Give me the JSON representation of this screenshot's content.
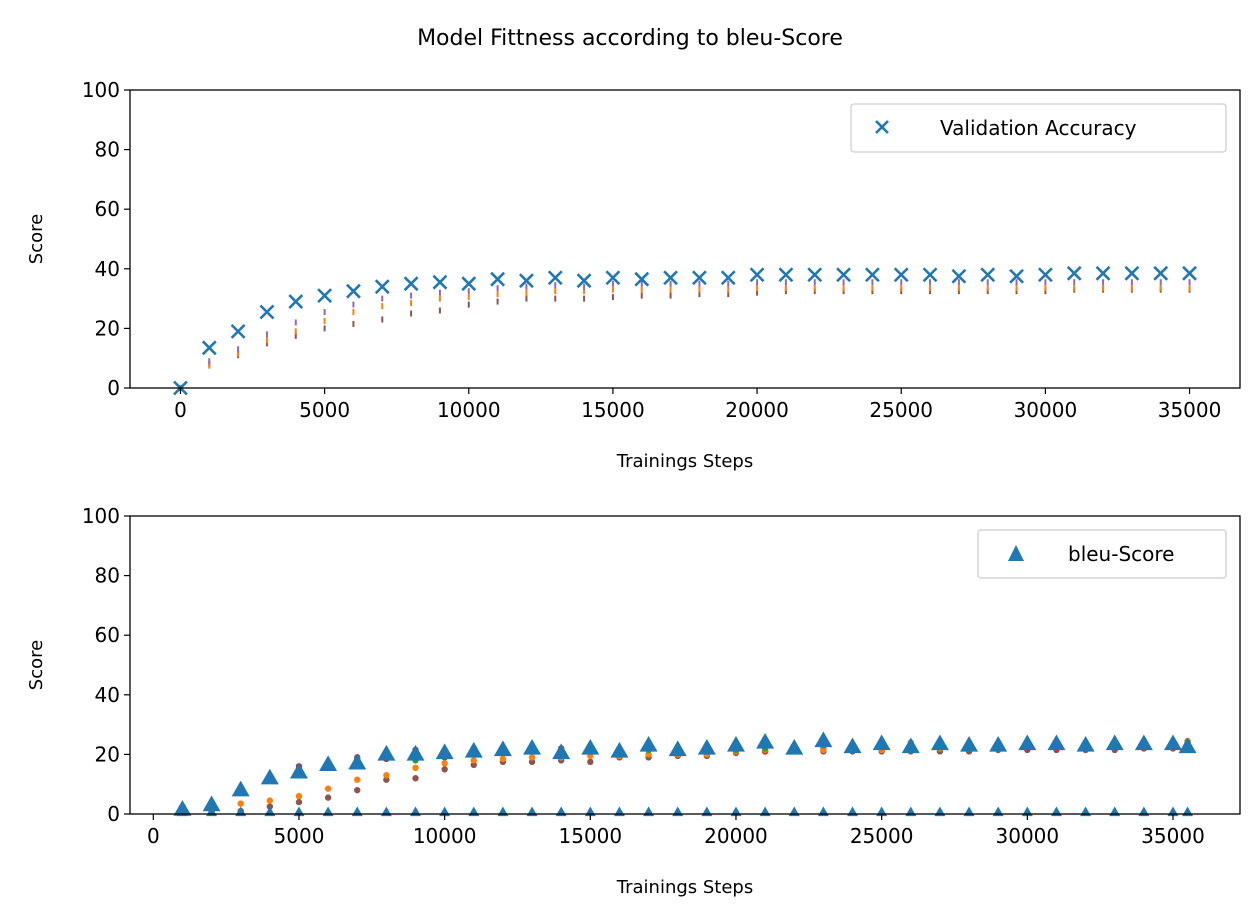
{
  "figure": {
    "title": "Model Fittness according to bleu-Score"
  },
  "colors": {
    "blue": "#1f77b4",
    "orange": "#ff7f0e",
    "green": "#2ca02c",
    "red": "#d62728",
    "purple": "#9467bd",
    "brown": "#8c564b",
    "axis": "#000000",
    "legend_border": "#cccccc"
  },
  "chart_data": [
    {
      "type": "scatter",
      "xlabel": "Trainings Steps",
      "ylabel": "Score",
      "xlim": [
        -1750,
        36750
      ],
      "ylim": [
        0,
        100
      ],
      "xticks": [
        0,
        5000,
        10000,
        15000,
        20000,
        25000,
        30000,
        35000
      ],
      "yticks": [
        0,
        20,
        40,
        60,
        80,
        100
      ],
      "legend": {
        "position": "top-right",
        "entries": [
          "Validation Accuracy"
        ]
      },
      "x": [
        0,
        1000,
        2000,
        3000,
        4000,
        5000,
        6000,
        7000,
        8000,
        9000,
        10000,
        11000,
        12000,
        13000,
        14000,
        15000,
        16000,
        17000,
        18000,
        19000,
        20000,
        21000,
        22000,
        23000,
        24000,
        25000,
        26000,
        27000,
        28000,
        29000,
        30000,
        31000,
        32000,
        33000,
        34000,
        35000
      ],
      "series": [
        {
          "name": "Validation Accuracy",
          "marker": "x",
          "color": "#1f77b4",
          "values": [
            0,
            13.5,
            19,
            25.5,
            29,
            31,
            32.5,
            34,
            35,
            35.5,
            35,
            36.5,
            36,
            37,
            36,
            37,
            36.5,
            37,
            37,
            37,
            38,
            38,
            38,
            38,
            38,
            38,
            38,
            37.5,
            38,
            37.5,
            38,
            38.5,
            38.5,
            38.5,
            38.5,
            38.5
          ]
        },
        {
          "marker": "tick",
          "color": "#9467bd",
          "values": [
            0,
            9,
            13,
            18,
            22,
            25.5,
            28,
            30,
            31,
            32,
            32.5,
            33.5,
            34,
            34.5,
            34,
            35,
            35,
            35,
            35,
            35,
            35.5,
            35.5,
            35.5,
            35.5,
            35.5,
            35.5,
            35.5,
            35.5,
            35.5,
            35.5,
            35.5,
            35.5,
            35.5,
            35.5,
            35.5,
            35.5
          ]
        },
        {
          "marker": "tick",
          "color": "#ff7f0e",
          "values": [
            0,
            7.5,
            11.5,
            16,
            19,
            22.5,
            25.5,
            27.5,
            28.5,
            30,
            30.5,
            31.5,
            32,
            32.5,
            32.5,
            33,
            33,
            33,
            33,
            33,
            33.5,
            33.5,
            33.5,
            33.5,
            33.5,
            33.5,
            33.5,
            33.5,
            33.5,
            33.5,
            33.5,
            33.5,
            33.5,
            33.5,
            33.5,
            33.5
          ]
        },
        {
          "marker": "tick",
          "color": "#8c564b",
          "values": [
            0,
            8,
            11,
            15,
            17.5,
            20,
            21.5,
            23,
            25,
            26,
            28,
            29,
            30,
            30,
            30,
            30.5,
            31,
            31,
            31.5,
            31.5,
            32,
            32.5,
            32.5,
            32.5,
            32.5,
            32.5,
            32.5,
            32.5,
            32.5,
            32.5,
            32.5,
            33,
            33,
            33,
            33,
            33
          ]
        }
      ]
    },
    {
      "type": "scatter",
      "xlabel": "Trainings Steps",
      "ylabel": "Score",
      "xlim": [
        -800,
        37300
      ],
      "ylim": [
        0,
        100
      ],
      "xticks": [
        0,
        5000,
        10000,
        15000,
        20000,
        25000,
        30000,
        35000
      ],
      "yticks": [
        0,
        20,
        40,
        60,
        80,
        100
      ],
      "legend": {
        "position": "top-right",
        "entries": [
          "bleu-Score"
        ]
      },
      "x": [
        1000,
        2000,
        3000,
        4000,
        5000,
        6000,
        7000,
        8000,
        9000,
        10000,
        11000,
        12000,
        13000,
        14000,
        15000,
        16000,
        17000,
        18000,
        19000,
        20000,
        21000,
        22000,
        23000,
        24000,
        25000,
        26000,
        27000,
        28000,
        29000,
        30000,
        31000,
        32000,
        33000,
        34000,
        35000,
        35500
      ],
      "series": [
        {
          "name": "bleu-Score",
          "marker": "triangle",
          "color": "#1f77b4",
          "values": [
            1.5,
            3,
            8,
            12,
            14,
            16.5,
            17,
            20,
            20,
            20.5,
            21,
            21.5,
            22,
            20.5,
            22,
            21,
            23,
            21.5,
            22,
            23,
            24,
            22,
            24.5,
            22.5,
            23.5,
            22.5,
            23.5,
            23,
            23,
            23.5,
            23.5,
            23,
            23.5,
            23.5,
            23.5,
            22.5
          ]
        },
        {
          "marker": "triangle-small",
          "color": "#1f77b4",
          "values": [
            0.5,
            0.5,
            0.5,
            0.5,
            0.5,
            0.5,
            0.5,
            0.5,
            0.5,
            0.5,
            0.5,
            0.5,
            0.5,
            0.5,
            0.5,
            0.5,
            0.5,
            0.5,
            0.5,
            0.5,
            0.5,
            0.5,
            0.5,
            0.5,
            0.5,
            0.5,
            0.5,
            0.5,
            0.5,
            0.5,
            0.5,
            0.5,
            0.5,
            0.5,
            0.5,
            0.5
          ]
        },
        {
          "marker": "dot",
          "color": "#2ca02c",
          "values": [
            2,
            4,
            8.5,
            12,
            15,
            17,
            18.5,
            19.5,
            18,
            21.5,
            22,
            21.5,
            21.5,
            21,
            21,
            20.5,
            21.5,
            21,
            21,
            21.5,
            22,
            23,
            23,
            23,
            22.5,
            23,
            24,
            23,
            23.5,
            23,
            24,
            23.5,
            23,
            24,
            24,
            24
          ]
        },
        {
          "marker": "dot",
          "color": "#ff7f0e",
          "values": [
            1,
            1,
            3.5,
            4.5,
            6,
            8.5,
            11.5,
            13,
            15.5,
            17,
            18,
            18.5,
            19,
            19,
            19.5,
            19.5,
            20,
            20,
            20,
            21,
            21.5,
            22,
            21.5,
            21.5,
            21.5,
            24,
            22,
            22,
            22.5,
            22.5,
            22.5,
            23,
            23,
            23,
            23,
            24.5
          ]
        },
        {
          "marker": "dot",
          "color": "#d62728",
          "values": [
            2.5,
            4,
            8,
            12.5,
            16,
            17,
            19,
            18.5,
            21.5,
            19,
            22,
            21,
            21,
            22,
            21.5,
            20,
            21.5,
            22,
            21,
            21.5,
            21,
            22.5,
            22,
            22,
            22,
            22,
            22.5,
            22.5,
            22,
            22,
            22,
            23,
            22.5,
            23,
            23,
            22.5
          ]
        },
        {
          "marker": "dot",
          "color": "#8c564b",
          "values": [
            0.5,
            0.5,
            1,
            2.5,
            4,
            5.5,
            8,
            11.5,
            12,
            15,
            16.5,
            17.5,
            17.5,
            18,
            17.5,
            19,
            19,
            19.5,
            19.5,
            20.5,
            21,
            21,
            21,
            21,
            21,
            21,
            21,
            21,
            21.5,
            21.5,
            21.5,
            21.5,
            21.5,
            22,
            22,
            22
          ]
        }
      ]
    }
  ]
}
